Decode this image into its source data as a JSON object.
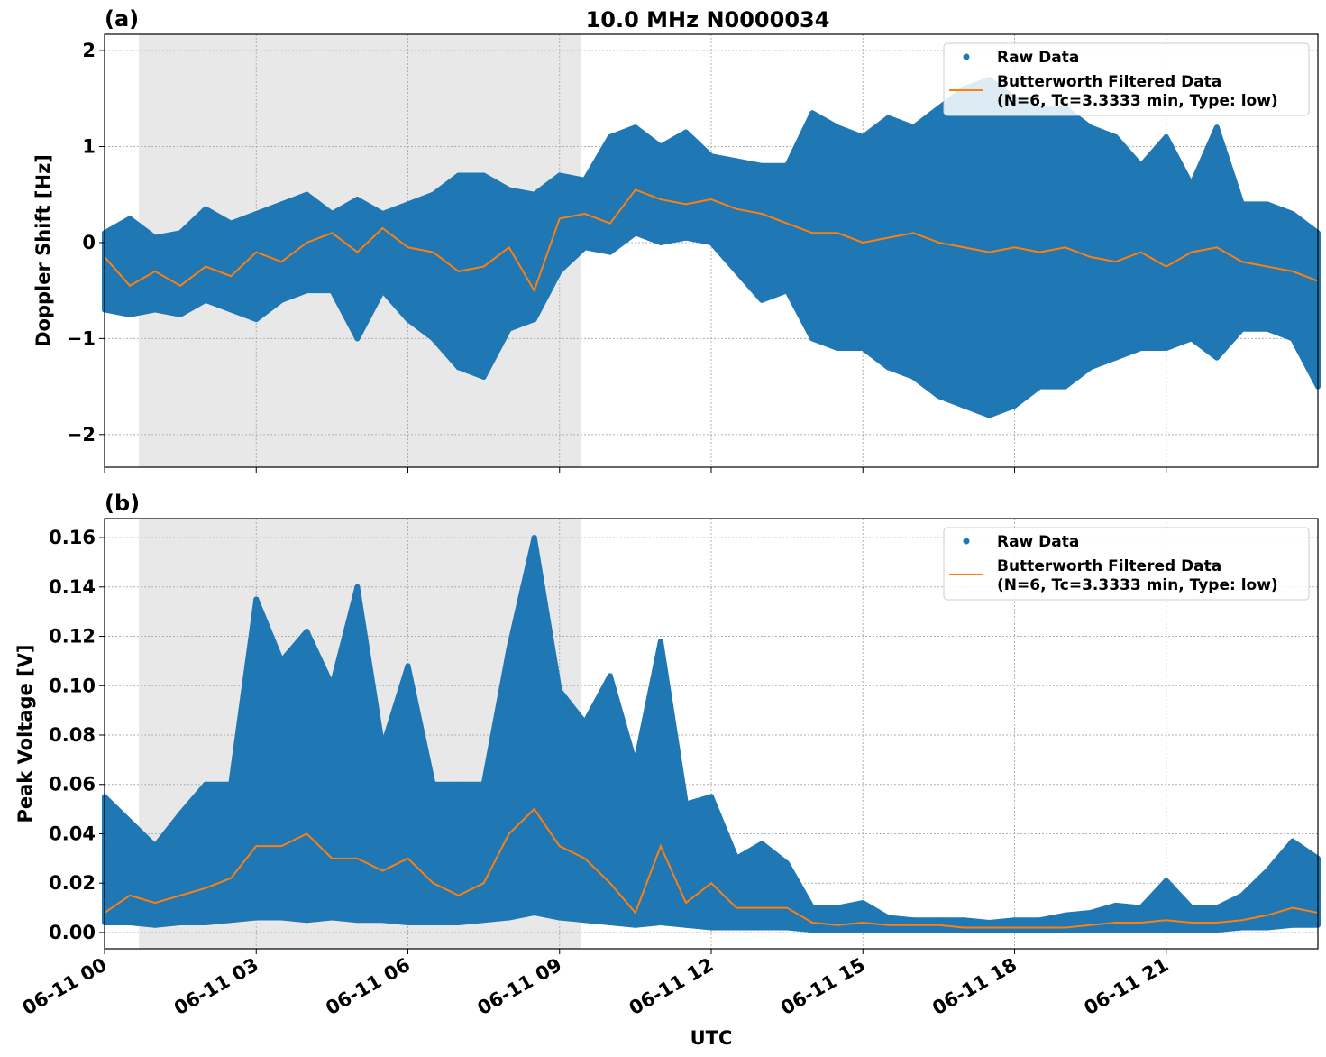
{
  "title": "10.0 MHz N0000034",
  "x_tick_labels": [
    "06-11 00",
    "06-11 03",
    "06-11 06",
    "06-11 09",
    "06-11 12",
    "06-11 15",
    "06-11 18",
    "06-11 21"
  ],
  "xlabel": "UTC",
  "colors": {
    "raw": "#1f77b4",
    "filtered": "#ff7f0e",
    "shade": "#e8e8e8"
  },
  "chart_data": [
    {
      "type": "scatter",
      "panel_label": "(a)",
      "ylabel": "Doppler Shift [Hz]",
      "x_unit": "hours UTC on 06-11",
      "xlim": [
        0,
        24
      ],
      "ylim": [
        -2.34,
        2.17
      ],
      "yticks": [
        2,
        1,
        0,
        -1,
        -2
      ],
      "ytick_labels": [
        "2",
        "1",
        "0",
        "−1",
        "−2"
      ],
      "grid": true,
      "shaded_interval_hours": [
        0.68,
        9.43
      ],
      "legend": {
        "placement": "top-right",
        "entries": [
          "Raw Data",
          "Butterworth Filtered Data",
          "(N=6, Tc=3.3333 min, Type: low)"
        ]
      },
      "x": [
        0,
        0.5,
        1,
        1.5,
        2,
        2.5,
        3,
        3.5,
        4,
        4.5,
        5,
        5.5,
        6,
        6.5,
        7,
        7.5,
        8,
        8.5,
        9,
        9.5,
        10,
        10.5,
        11,
        11.5,
        12,
        12.5,
        13,
        13.5,
        14,
        14.5,
        15,
        15.5,
        16,
        16.5,
        17,
        17.5,
        18,
        18.5,
        19,
        19.5,
        20,
        20.5,
        21,
        21.5,
        22,
        22.5,
        23,
        23.5,
        24
      ],
      "series": [
        {
          "name": "Butterworth Filtered Data",
          "kind": "line",
          "values": [
            -0.15,
            -0.45,
            -0.3,
            -0.45,
            -0.25,
            -0.35,
            -0.1,
            -0.2,
            0.0,
            0.1,
            -0.1,
            0.15,
            -0.05,
            -0.1,
            -0.3,
            -0.25,
            -0.05,
            -0.5,
            0.25,
            0.3,
            0.2,
            0.55,
            0.45,
            0.4,
            0.45,
            0.35,
            0.3,
            0.2,
            0.1,
            0.1,
            0.0,
            0.05,
            0.1,
            0.0,
            -0.05,
            -0.1,
            -0.05,
            -0.1,
            -0.05,
            -0.15,
            -0.2,
            -0.1,
            -0.25,
            -0.1,
            -0.05,
            -0.2,
            -0.25,
            -0.3,
            -0.4
          ]
        },
        {
          "name": "Raw Data",
          "kind": "scatter-range",
          "min": [
            -0.7,
            -0.75,
            -0.7,
            -0.75,
            -0.6,
            -0.7,
            -0.8,
            -0.6,
            -0.5,
            -0.5,
            -1.0,
            -0.5,
            -0.8,
            -1.0,
            -1.3,
            -1.4,
            -0.9,
            -0.8,
            -0.3,
            -0.05,
            -0.1,
            0.1,
            0.0,
            0.05,
            0.0,
            -0.3,
            -0.6,
            -0.5,
            -1.0,
            -1.1,
            -1.1,
            -1.3,
            -1.4,
            -1.6,
            -1.7,
            -1.8,
            -1.7,
            -1.5,
            -1.5,
            -1.3,
            -1.2,
            -1.1,
            -1.1,
            -1.0,
            -1.2,
            -0.9,
            -0.9,
            -1.0,
            -1.5
          ],
          "max": [
            0.1,
            0.25,
            0.05,
            0.1,
            0.35,
            0.2,
            0.3,
            0.4,
            0.5,
            0.3,
            0.45,
            0.3,
            0.4,
            0.5,
            0.7,
            0.7,
            0.55,
            0.5,
            0.7,
            0.65,
            1.1,
            1.2,
            1.0,
            1.15,
            0.9,
            0.85,
            0.8,
            0.8,
            1.35,
            1.2,
            1.1,
            1.3,
            1.2,
            1.4,
            1.6,
            1.7,
            1.5,
            1.4,
            1.4,
            1.2,
            1.1,
            0.8,
            1.1,
            0.6,
            1.2,
            0.4,
            0.4,
            0.3,
            0.1
          ]
        }
      ]
    },
    {
      "type": "scatter",
      "panel_label": "(b)",
      "ylabel": "Peak Voltage [V]",
      "x_unit": "hours UTC on 06-11",
      "xlim": [
        0,
        24
      ],
      "ylim": [
        -0.0066,
        0.1677
      ],
      "yticks": [
        0,
        0.02,
        0.04,
        0.06,
        0.08,
        0.1,
        0.12,
        0.14,
        0.16
      ],
      "ytick_labels": [
        "0.00",
        "0.02",
        "0.04",
        "0.06",
        "0.08",
        "0.10",
        "0.12",
        "0.14",
        "0.16"
      ],
      "grid": true,
      "shaded_interval_hours": [
        0.68,
        9.43
      ],
      "legend": {
        "placement": "top-right",
        "entries": [
          "Raw Data",
          "Butterworth Filtered Data",
          "(N=6, Tc=3.3333 min, Type: low)"
        ]
      },
      "x": [
        0,
        0.5,
        1,
        1.5,
        2,
        2.5,
        3,
        3.5,
        4,
        4.5,
        5,
        5.5,
        6,
        6.5,
        7,
        7.5,
        8,
        8.5,
        9,
        9.5,
        10,
        10.5,
        11,
        11.5,
        12,
        12.5,
        13,
        13.5,
        14,
        14.5,
        15,
        15.5,
        16,
        16.5,
        17,
        17.5,
        18,
        18.5,
        19,
        19.5,
        20,
        20.5,
        21,
        21.5,
        22,
        22.5,
        23,
        23.5,
        24
      ],
      "series": [
        {
          "name": "Butterworth Filtered Data",
          "kind": "line",
          "values": [
            0.008,
            0.015,
            0.012,
            0.015,
            0.018,
            0.022,
            0.035,
            0.035,
            0.04,
            0.03,
            0.03,
            0.025,
            0.03,
            0.02,
            0.015,
            0.02,
            0.04,
            0.05,
            0.035,
            0.03,
            0.02,
            0.008,
            0.035,
            0.012,
            0.02,
            0.01,
            0.01,
            0.01,
            0.004,
            0.003,
            0.004,
            0.003,
            0.003,
            0.003,
            0.002,
            0.002,
            0.002,
            0.002,
            0.002,
            0.003,
            0.004,
            0.004,
            0.005,
            0.004,
            0.004,
            0.005,
            0.007,
            0.01,
            0.008
          ]
        },
        {
          "name": "Raw Data",
          "kind": "scatter-range",
          "min": [
            0.004,
            0.004,
            0.003,
            0.004,
            0.004,
            0.005,
            0.006,
            0.006,
            0.005,
            0.006,
            0.005,
            0.005,
            0.004,
            0.004,
            0.004,
            0.005,
            0.006,
            0.008,
            0.006,
            0.005,
            0.004,
            0.003,
            0.004,
            0.003,
            0.002,
            0.002,
            0.002,
            0.002,
            0.001,
            0.001,
            0.001,
            0.001,
            0.001,
            0.001,
            0.001,
            0.001,
            0.001,
            0.001,
            0.001,
            0.001,
            0.001,
            0.001,
            0.001,
            0.001,
            0.001,
            0.002,
            0.002,
            0.003,
            0.003
          ],
          "max": [
            0.055,
            0.045,
            0.035,
            0.048,
            0.06,
            0.06,
            0.135,
            0.11,
            0.122,
            0.1,
            0.14,
            0.075,
            0.108,
            0.06,
            0.06,
            0.06,
            0.115,
            0.16,
            0.098,
            0.085,
            0.104,
            0.068,
            0.118,
            0.052,
            0.055,
            0.03,
            0.036,
            0.028,
            0.01,
            0.01,
            0.012,
            0.006,
            0.005,
            0.005,
            0.005,
            0.004,
            0.005,
            0.005,
            0.007,
            0.008,
            0.011,
            0.01,
            0.021,
            0.01,
            0.01,
            0.015,
            0.025,
            0.037,
            0.03
          ]
        }
      ]
    }
  ]
}
